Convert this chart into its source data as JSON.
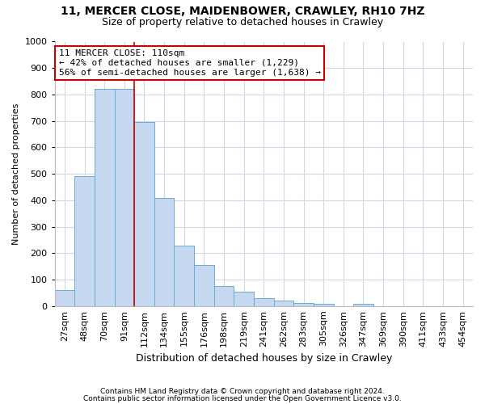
{
  "title1": "11, MERCER CLOSE, MAIDENBOWER, CRAWLEY, RH10 7HZ",
  "title2": "Size of property relative to detached houses in Crawley",
  "xlabel": "Distribution of detached houses by size in Crawley",
  "ylabel": "Number of detached properties",
  "footnote1": "Contains HM Land Registry data © Crown copyright and database right 2024.",
  "footnote2": "Contains public sector information licensed under the Open Government Licence v3.0.",
  "bin_labels": [
    "27sqm",
    "48sqm",
    "70sqm",
    "91sqm",
    "112sqm",
    "134sqm",
    "155sqm",
    "176sqm",
    "198sqm",
    "219sqm",
    "241sqm",
    "262sqm",
    "283sqm",
    "305sqm",
    "326sqm",
    "347sqm",
    "369sqm",
    "390sqm",
    "411sqm",
    "433sqm",
    "454sqm"
  ],
  "bar_values": [
    60,
    490,
    820,
    820,
    695,
    410,
    230,
    155,
    75,
    55,
    30,
    20,
    13,
    10,
    0,
    10,
    0,
    0,
    0,
    0,
    0
  ],
  "bar_color": "#c5d8f0",
  "bar_edge_color": "#6aaad4",
  "grid_color": "#d0d8e8",
  "vline_x_index": 4,
  "vline_color": "#cc0000",
  "annotation_text": "11 MERCER CLOSE: 110sqm\n← 42% of detached houses are smaller (1,229)\n56% of semi-detached houses are larger (1,638) →",
  "annotation_box_color": "#ffffff",
  "annotation_border_color": "#cc0000",
  "ylim": [
    0,
    1000
  ],
  "yticks": [
    0,
    100,
    200,
    300,
    400,
    500,
    600,
    700,
    800,
    900,
    1000
  ],
  "background_color": "#ffffff",
  "title1_fontsize": 10,
  "title2_fontsize": 9,
  "xlabel_fontsize": 9,
  "ylabel_fontsize": 8,
  "tick_fontsize": 8,
  "footnote_fontsize": 6.5
}
